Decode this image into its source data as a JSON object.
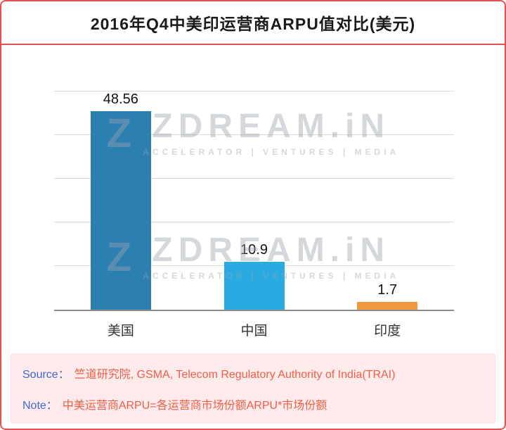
{
  "title": "2016年Q4中美印运营商ARPU值对比(美元)",
  "watermark": {
    "logo_letter": "Z",
    "brand": "ZDREAM.iN",
    "tagline": "ACCELERATOR | VENTURES | MEDIA"
  },
  "chart_data": {
    "type": "bar",
    "title": "2016年Q4中美印运营商ARPU值对比(美元)",
    "categories": [
      "美国",
      "中国",
      "印度"
    ],
    "values": [
      48.56,
      10.9,
      1.7
    ],
    "value_labels": [
      "48.56",
      "10.9",
      "1.7"
    ],
    "bar_colors": [
      "#2b80b0",
      "#29abe2",
      "#f0993e"
    ],
    "xlabel": "",
    "ylabel": "",
    "ylim": [
      0,
      50
    ],
    "grid": true,
    "gridline_values": [
      10,
      20,
      30,
      40,
      50
    ],
    "legend": false
  },
  "footer": {
    "source_label": "Source：",
    "source_text": "竺道研究院, GSMA, Telecom Regulatory Authority of India(TRAI)",
    "note_label": "Note：",
    "note_text": "中美运营商ARPU=各运营商市场份额ARPU*市场份额"
  },
  "colors": {
    "accent_red": "#e95050",
    "footer_bg": "#fdeaea",
    "label_blue": "#3d6ad6",
    "footer_text_red": "#f0604a",
    "gridline": "#d9d9d9",
    "axis": "#8c8c8c",
    "watermark_gray": "#9aa3b0"
  }
}
